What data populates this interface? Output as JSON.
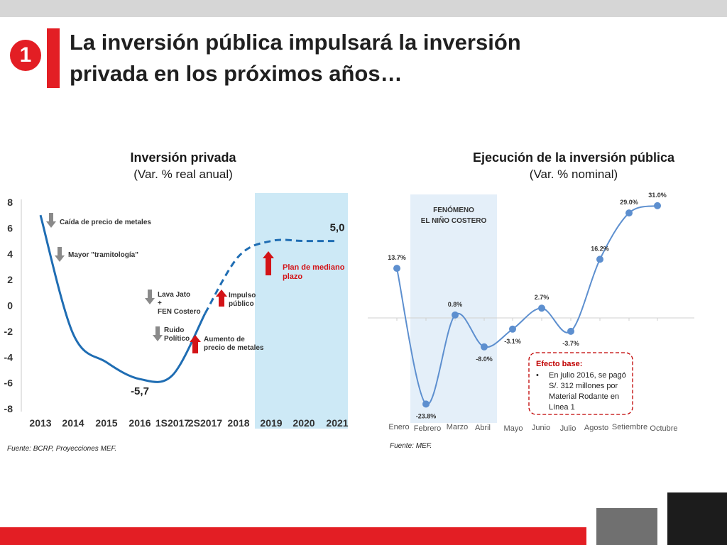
{
  "slide": {
    "number": "1",
    "title_line1": "La inversión pública impulsará la inversión",
    "title_line2": "privada en los próximos años…"
  },
  "left_chart_header": {
    "title": "Inversión privada",
    "subtitle": "(Var. % real anual)",
    "source": "Fuente: BCRP, Proyecciones MEF."
  },
  "right_chart_header": {
    "title": "Ejecución de la inversión pública",
    "subtitle": "(Var. % nominal)",
    "source": "Fuente: MEF."
  },
  "colors": {
    "accent_red": "#e31e24",
    "line_blue": "#1f6db3",
    "line_blue_light": "#5d8fcf",
    "shade_blue": "#cde9f6",
    "shade_blue_light": "#e4eff9",
    "arrow_gray": "#8a8a8a",
    "arrow_red": "#d31317"
  },
  "chart_data": [
    {
      "type": "line",
      "title": "Inversión privada",
      "subtitle": "(Var. % real anual)",
      "categories": [
        "2013",
        "2014",
        "2015",
        "2016",
        "1S2017",
        "2S2017",
        "2018",
        "2019",
        "2020",
        "2021"
      ],
      "series": [
        {
          "values": [
            7.0,
            -2.2,
            -4.4,
            -5.7,
            -5.4,
            -0.6,
            3.8,
            5.0,
            5.0,
            5.0
          ]
        }
      ],
      "y_ticks": [
        "8",
        "6",
        "4",
        "2",
        "0",
        "-2",
        "-4",
        "-6",
        "-8"
      ],
      "ylim": [
        -8,
        8
      ],
      "projection_from": "2S2017",
      "shaded_range": [
        "2019",
        "2021"
      ],
      "min_label": "-5,7",
      "end_label": "5,0",
      "annotations": [
        {
          "text": "Caída de precio de metales",
          "arrow": "down-gray"
        },
        {
          "text": "Mayor \"tramitología\"",
          "arrow": "down-gray"
        },
        {
          "text": "Lava Jato + FEN Costero",
          "arrow": "down-gray"
        },
        {
          "text": "Ruido Político",
          "arrow": "down-gray"
        },
        {
          "text": "Impulso público",
          "arrow": "up-red"
        },
        {
          "text": "Aumento de precio de metales",
          "arrow": "up-red"
        },
        {
          "text": "Plan de mediano plazo",
          "arrow": "up-red"
        }
      ],
      "grid": false,
      "legend": "none"
    },
    {
      "type": "line",
      "title": "Ejecución de la inversión pública",
      "subtitle": "(Var. % nominal)",
      "categories": [
        "Enero",
        "Febrero",
        "Marzo",
        "Abril",
        "Mayo",
        "Junio",
        "Julio",
        "Agosto",
        "Setiembre",
        "Octubre"
      ],
      "series": [
        {
          "values": [
            13.7,
            -23.8,
            0.8,
            -8.0,
            -3.1,
            2.7,
            -3.7,
            16.2,
            29.0,
            31.0
          ],
          "labels": [
            "13.7%",
            "-23.8%",
            "0.8%",
            "-8.0%",
            "-3.1%",
            "2.7%",
            "-3.7%",
            "16.2%",
            "29.0%",
            "31.0%"
          ]
        }
      ],
      "shaded_range": [
        "Febrero",
        "Abril"
      ],
      "shaded_label_line1": "FENÓMENO",
      "shaded_label_line2": "EL NIÑO COSTERO",
      "ylim": [
        -28,
        36
      ],
      "box_title": "Efecto base:",
      "box_bullet": "•",
      "box_text": [
        "En julio 2016, se pagó",
        "S/. 312 millones por",
        "Material Rodante en",
        "Línea 1"
      ],
      "grid": false,
      "legend": "none"
    }
  ]
}
